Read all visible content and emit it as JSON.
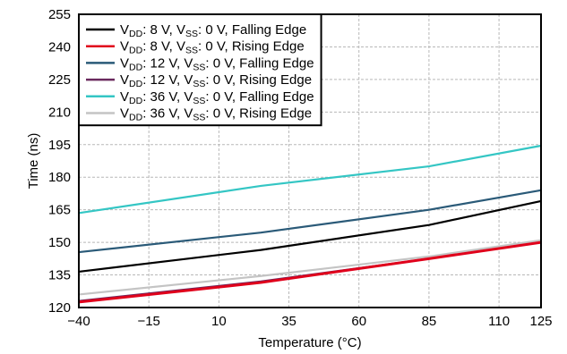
{
  "chart_data": {
    "type": "line",
    "xlabel": "Temperature (°C)",
    "ylabel": "Time (ns)",
    "x": [
      -40,
      25,
      85,
      125
    ],
    "xlim": [
      -40,
      125
    ],
    "ylim": [
      120,
      255
    ],
    "xticks": [
      "-40",
      "-15",
      "10",
      "35",
      "60",
      "85",
      "110",
      "125"
    ],
    "xtick_values": [
      -40,
      -15,
      10,
      35,
      60,
      85,
      110,
      125
    ],
    "yticks": [
      "120",
      "135",
      "150",
      "165",
      "180",
      "195",
      "210",
      "225",
      "240",
      "255"
    ],
    "ytick_values": [
      120,
      135,
      150,
      165,
      180,
      195,
      210,
      225,
      240,
      255
    ],
    "grid": true,
    "legend_position": "top-left",
    "series": [
      {
        "label_parts": {
          "v1": "V",
          "s1": "DD",
          "m1": ": 8 V, V",
          "s2": "SS",
          "m2": ": 0 V, Falling Edge"
        },
        "color": "#000000",
        "values": [
          136.5,
          146.5,
          158,
          169
        ]
      },
      {
        "label_parts": {
          "v1": "V",
          "s1": "DD",
          "m1": ": 8 V, V",
          "s2": "SS",
          "m2": ": 0 V, Rising Edge"
        },
        "color": "#e0001b",
        "values": [
          122.5,
          131.5,
          142.5,
          150
        ]
      },
      {
        "label_parts": {
          "v1": "V",
          "s1": "DD",
          "m1": ": 12 V, V",
          "s2": "SS",
          "m2": ": 0 V, Falling Edge"
        },
        "color": "#2a5a78",
        "values": [
          145.5,
          154.5,
          165,
          174
        ]
      },
      {
        "label_parts": {
          "v1": "V",
          "s1": "DD",
          "m1": ": 12 V, V",
          "s2": "SS",
          "m2": ": 0 V, Rising Edge"
        },
        "color": "#6a2a5e",
        "values": [
          123,
          132,
          142.5,
          150
        ]
      },
      {
        "label_parts": {
          "v1": "V",
          "s1": "DD",
          "m1": ": 36 V, V",
          "s2": "SS",
          "m2": ": 0 V, Falling Edge"
        },
        "color": "#34c6c4",
        "values": [
          163.5,
          176,
          185,
          194.5
        ]
      },
      {
        "label_parts": {
          "v1": "V",
          "s1": "DD",
          "m1": ": 36 V, V",
          "s2": "SS",
          "m2": ": 0 V, Rising Edge"
        },
        "color": "#c4c4c4",
        "values": [
          126,
          134.5,
          143.5,
          151
        ]
      }
    ]
  }
}
